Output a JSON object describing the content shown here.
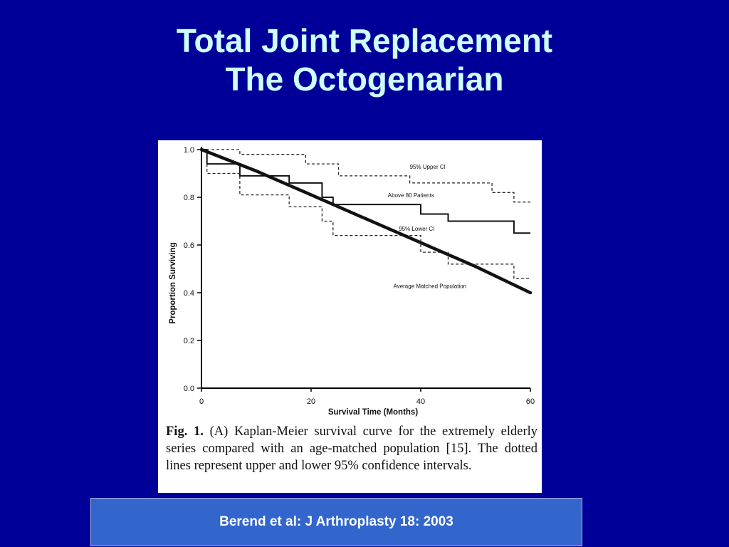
{
  "slide": {
    "title_line1": "Total Joint Replacement",
    "title_line2": "The Octogenarian",
    "citation": "Berend et al: J Arthroplasty 18: 2003",
    "colors": {
      "background": "#000099",
      "title": "#ccffff",
      "citation_box": "#3366cc"
    }
  },
  "figure": {
    "caption_label": "Fig. 1.",
    "caption_text": "(A) Kaplan-Meier survival curve for the extremely elderly series compared with an age-matched population [15]. The dotted lines represent upper and lower 95% confidence intervals."
  },
  "chart_data": {
    "type": "line",
    "title": "",
    "xlabel": "Survival Time (Months)",
    "ylabel": "Proportion Surviving",
    "xlim": [
      0,
      60
    ],
    "ylim": [
      0,
      1.0
    ],
    "x_ticks": [
      "0",
      "20",
      "40",
      "60"
    ],
    "y_ticks": [
      "0.0",
      "0.2",
      "0.4",
      "0.6",
      "0.8",
      "1.0"
    ],
    "grid": false,
    "series": [
      {
        "name": "95% Upper CI",
        "style": "dashed",
        "step": true,
        "points": [
          [
            0,
            1.0
          ],
          [
            7,
            1.0
          ],
          [
            7,
            0.98
          ],
          [
            19,
            0.98
          ],
          [
            19,
            0.94
          ],
          [
            25,
            0.94
          ],
          [
            25,
            0.89
          ],
          [
            38,
            0.89
          ],
          [
            38,
            0.86
          ],
          [
            53,
            0.86
          ],
          [
            53,
            0.82
          ],
          [
            57,
            0.82
          ],
          [
            57,
            0.78
          ],
          [
            60,
            0.78
          ]
        ]
      },
      {
        "name": "Above 80 Patients",
        "style": "solid",
        "step": true,
        "points": [
          [
            0,
            1.0
          ],
          [
            1,
            1.0
          ],
          [
            1,
            0.94
          ],
          [
            7,
            0.94
          ],
          [
            7,
            0.89
          ],
          [
            16,
            0.89
          ],
          [
            16,
            0.86
          ],
          [
            22,
            0.86
          ],
          [
            22,
            0.8
          ],
          [
            24,
            0.8
          ],
          [
            24,
            0.77
          ],
          [
            40,
            0.77
          ],
          [
            40,
            0.73
          ],
          [
            45,
            0.73
          ],
          [
            45,
            0.7
          ],
          [
            57,
            0.7
          ],
          [
            57,
            0.65
          ],
          [
            60,
            0.65
          ]
        ]
      },
      {
        "name": "95% Lower CI",
        "style": "dashed",
        "step": true,
        "points": [
          [
            0,
            1.0
          ],
          [
            1,
            1.0
          ],
          [
            1,
            0.9
          ],
          [
            7,
            0.9
          ],
          [
            7,
            0.81
          ],
          [
            16,
            0.81
          ],
          [
            16,
            0.76
          ],
          [
            22,
            0.76
          ],
          [
            22,
            0.7
          ],
          [
            24,
            0.7
          ],
          [
            24,
            0.64
          ],
          [
            40,
            0.64
          ],
          [
            40,
            0.57
          ],
          [
            45,
            0.57
          ],
          [
            45,
            0.52
          ],
          [
            57,
            0.52
          ],
          [
            57,
            0.46
          ],
          [
            60,
            0.46
          ]
        ]
      },
      {
        "name": "Average Matched Population",
        "style": "bold",
        "step": false,
        "points": [
          [
            0,
            1.0
          ],
          [
            10,
            0.91
          ],
          [
            20,
            0.81
          ],
          [
            30,
            0.71
          ],
          [
            40,
            0.61
          ],
          [
            50,
            0.51
          ],
          [
            60,
            0.4
          ]
        ]
      }
    ]
  }
}
